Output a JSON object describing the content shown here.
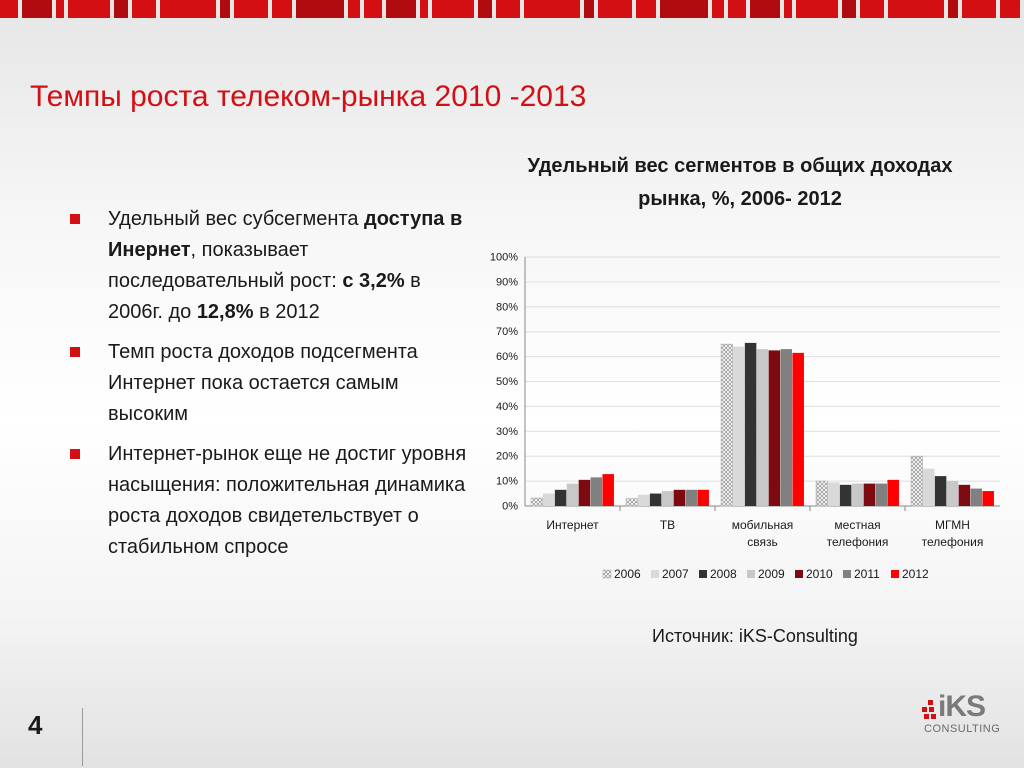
{
  "title": "Темпы роста телеком-рынка 2010 -2013",
  "bullets": [
    {
      "parts": [
        {
          "text": "Удельный вес субсегмента ",
          "bold": false
        },
        {
          "text": "доступа в Инернет",
          "bold": true
        },
        {
          "text": ", показывает последовательный рост: ",
          "bold": false
        },
        {
          "text": "с 3,2%",
          "bold": true
        },
        {
          "text": " в 2006г. до ",
          "bold": false
        },
        {
          "text": "12,8%",
          "bold": true
        },
        {
          "text": " в 2012",
          "bold": false
        }
      ]
    },
    {
      "parts": [
        {
          "text": "Темп роста доходов подсегмента Интернет пока остается самым высоким",
          "bold": false
        }
      ]
    },
    {
      "parts": [
        {
          "text": "Интернет-рынок еще не достиг уровня насыщения: положительная динамика роста доходов свидетельствует о стабильном спросе",
          "bold": false
        }
      ]
    }
  ],
  "chart_data": {
    "type": "bar",
    "title": "Удельный вес сегментов в общих доходах рынка, %, 2006- 2012",
    "categories": [
      [
        "Интернет"
      ],
      [
        "ТВ"
      ],
      [
        "мобильная",
        "связь"
      ],
      [
        "местная",
        "телефония"
      ],
      [
        "МГМН",
        "телефония"
      ]
    ],
    "ylim": [
      0,
      100
    ],
    "yticks": [
      0,
      10,
      20,
      30,
      40,
      50,
      60,
      70,
      80,
      90,
      100
    ],
    "ytick_labels": [
      "0%",
      "10%",
      "20%",
      "30%",
      "40%",
      "50%",
      "60%",
      "70%",
      "80%",
      "90%",
      "100%"
    ],
    "grid": true,
    "legend_position": "bottom",
    "series": [
      {
        "name": "2006",
        "color": "#ffffff",
        "pattern": "crosshatch",
        "values": [
          3.2,
          3.0,
          65.0,
          10.0,
          20.0
        ]
      },
      {
        "name": "2007",
        "color": "#d9d9d9",
        "values": [
          5.0,
          4.5,
          64.0,
          9.5,
          15.0
        ]
      },
      {
        "name": "2008",
        "color": "#333333",
        "values": [
          6.5,
          5.0,
          65.5,
          8.5,
          12.0
        ]
      },
      {
        "name": "2009",
        "color": "#c8c8c8",
        "values": [
          9.0,
          6.0,
          63.0,
          9.0,
          10.0
        ]
      },
      {
        "name": "2010",
        "color": "#7b0b10",
        "values": [
          10.5,
          6.5,
          62.5,
          9.0,
          8.5
        ]
      },
      {
        "name": "2011",
        "color": "#808080",
        "values": [
          11.5,
          6.5,
          63.0,
          9.0,
          7.0
        ]
      },
      {
        "name": "2012",
        "color": "#ff0000",
        "values": [
          12.8,
          6.5,
          61.5,
          10.5,
          6.0
        ]
      }
    ]
  },
  "source": "Источник: iKS-Consulting",
  "page_number": "4",
  "logo": {
    "word": "iKS",
    "sub": "CONSULTING"
  }
}
